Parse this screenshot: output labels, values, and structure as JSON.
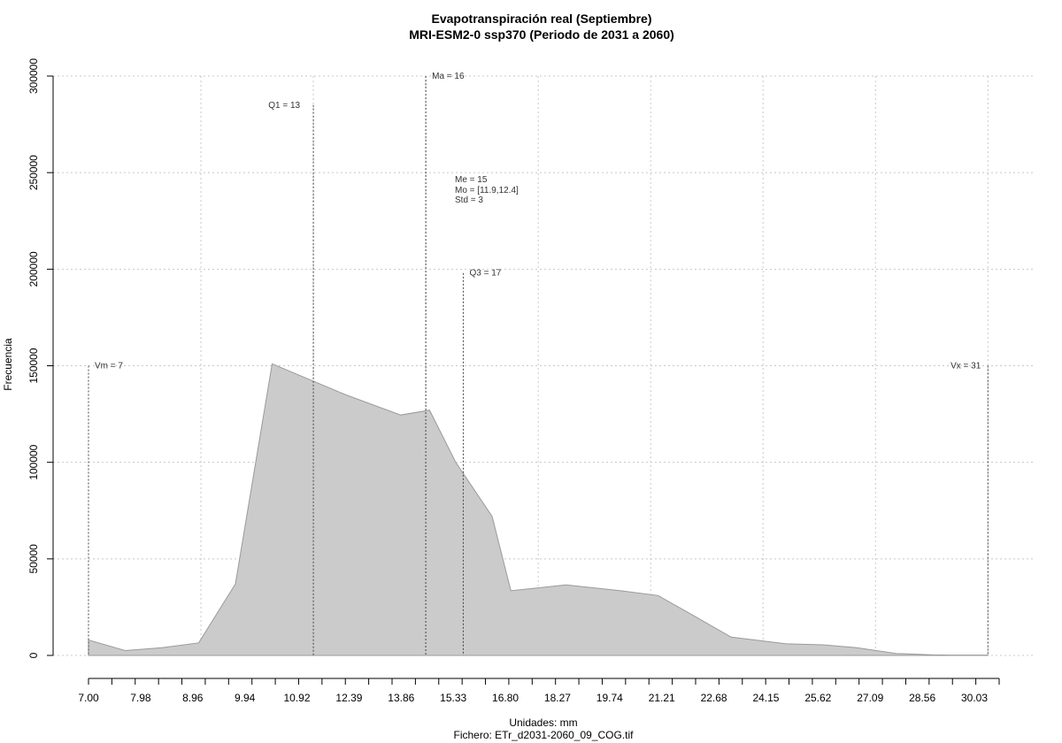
{
  "chart_data": {
    "type": "area",
    "title": "Evapotranspiración real (Septiembre)",
    "subtitle": "MRI-ESM2-0 ssp370 (Periodo de 2031 a 2060)",
    "xlabel": "Unidades: mm",
    "ylabel": "Frecuencia",
    "footer": "Fichero: ETr_d2031-2060_09_COG.tif",
    "xlim": [
      7.0,
      31.3
    ],
    "ylim": [
      0,
      300000
    ],
    "grid": true,
    "x_ticks": [
      "7.00",
      "7.98",
      "8.96",
      "9.94",
      "10.92",
      "12.39",
      "13.86",
      "15.33",
      "16.80",
      "18.27",
      "19.74",
      "21.21",
      "22.68",
      "24.15",
      "25.62",
      "27.09",
      "28.56",
      "30.03"
    ],
    "y_ticks": [
      0,
      50000,
      100000,
      150000,
      200000,
      250000,
      300000
    ],
    "x_grid": [
      10,
      13,
      16,
      19,
      22,
      25,
      28,
      31
    ],
    "x": [
      7.0,
      7.98,
      8.96,
      9.94,
      10.92,
      11.9,
      13.0,
      13.86,
      15.33,
      16.1,
      16.8,
      17.77,
      18.27,
      19.74,
      21.21,
      22.2,
      23.2,
      24.15,
      25.62,
      26.6,
      27.5,
      28.56,
      29.54,
      30.03,
      31.0
    ],
    "values": [
      8000,
      2500,
      4000,
      6500,
      37000,
      151000,
      142000,
      135000,
      124500,
      127000,
      100000,
      72000,
      33500,
      36500,
      33500,
      31000,
      20000,
      9500,
      6000,
      5500,
      4000,
      1000,
      300,
      200,
      200
    ],
    "annotations": [
      {
        "label": "Vm = 7",
        "x": 7.0,
        "y": 150000
      },
      {
        "label": "Q1 = 13",
        "x": 13.0,
        "y": 285000
      },
      {
        "label": "Ma = 16",
        "x": 16.0,
        "y": 300000
      },
      {
        "label": "Q3 = 17",
        "x": 17.0,
        "y": 198000
      },
      {
        "label": "Vx = 31",
        "x": 31.0,
        "y": 150000
      }
    ],
    "stats_text": [
      "Me = 15",
      "Mo = [11.9,12.4]",
      "Std = 3"
    ],
    "colors": {
      "fill": "#cbcbcb",
      "stroke": "#9a9a9a",
      "grid": "#c8c8c8"
    }
  }
}
